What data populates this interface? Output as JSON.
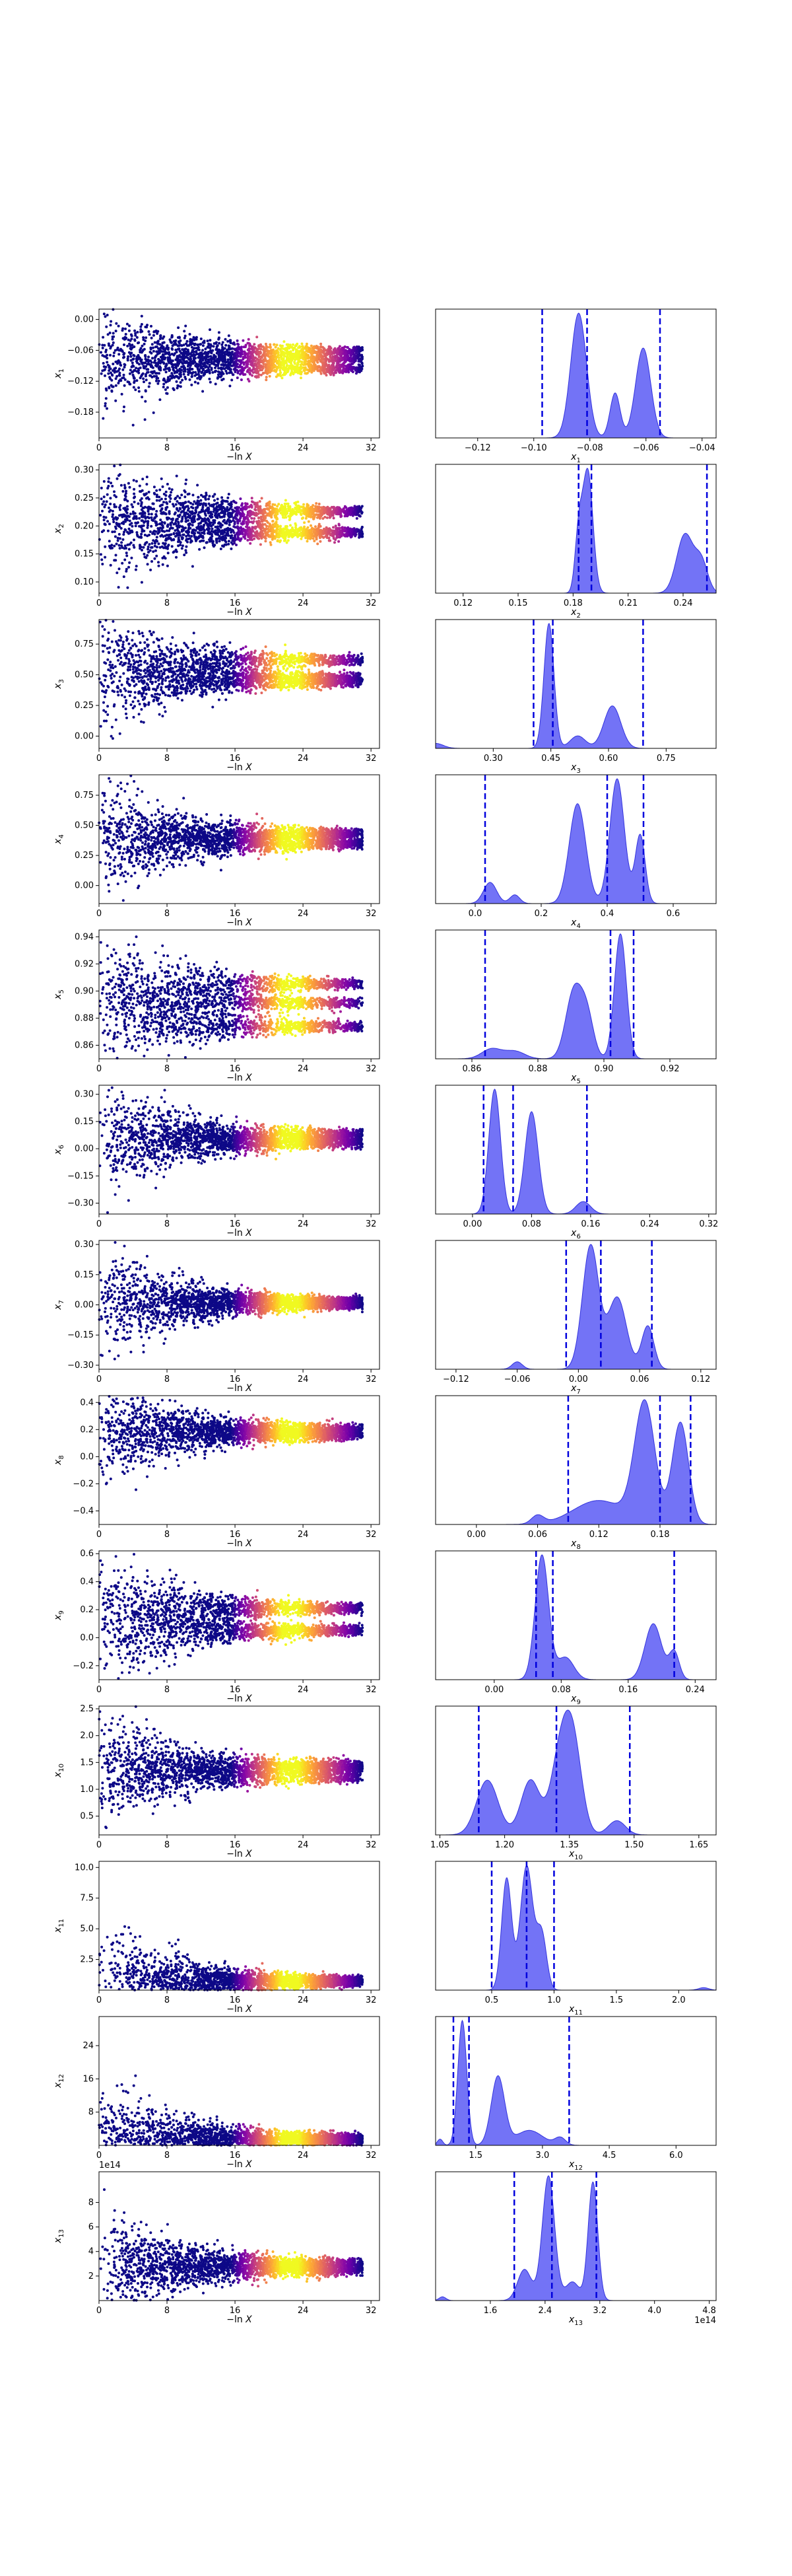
{
  "chart_data": [
    {
      "type": "scatter",
      "parameter": "x1",
      "left_ylabel": "x_1",
      "left_xlabel": "−ln X",
      "left_xlim": [
        0,
        33
      ],
      "left_xticks": [
        "0",
        "8",
        "16",
        "24",
        "32"
      ],
      "left_ylim": [
        -0.23,
        0.02
      ],
      "left_yticks": [
        0.0,
        -0.06,
        -0.12,
        -0.18
      ],
      "left_ytick_labels": [
        "0.00",
        "−0.06",
        "−0.12",
        "−0.18"
      ],
      "trace_modes": [
        -0.095,
        -0.076,
        -0.062
      ],
      "right_xlabel": "x_1",
      "right_xlim": [
        -0.135,
        -0.035
      ],
      "right_xticks": [
        -0.12,
        -0.1,
        -0.08,
        -0.06,
        -0.04
      ],
      "right_xtick_labels": [
        "−0.12",
        "−0.10",
        "−0.08",
        "−0.06",
        "−0.04"
      ],
      "peaks": [
        {
          "mu": -0.084,
          "sigma": 0.0028,
          "h": 1.0
        },
        {
          "mu": -0.071,
          "sigma": 0.0018,
          "h": 0.36
        },
        {
          "mu": -0.061,
          "sigma": 0.0027,
          "h": 0.72
        }
      ],
      "vlines": [
        -0.097,
        -0.081,
        -0.055
      ]
    },
    {
      "type": "scatter",
      "parameter": "x2",
      "left_ylabel": "x_2",
      "left_xlabel": "−ln X",
      "left_xlim": [
        0,
        33
      ],
      "left_xticks": [
        "0",
        "8",
        "16",
        "24",
        "32"
      ],
      "left_ylim": [
        0.08,
        0.31
      ],
      "left_yticks": [
        0.3,
        0.25,
        0.2,
        0.15,
        0.1
      ],
      "left_ytick_labels": [
        "0.30",
        "0.25",
        "0.20",
        "0.15",
        "0.10"
      ],
      "trace_modes": [
        0.188,
        0.226
      ],
      "right_xlabel": "x_2",
      "right_xlim": [
        0.105,
        0.258
      ],
      "right_xticks": [
        0.12,
        0.15,
        0.18,
        0.21,
        0.24
      ],
      "right_xtick_labels": [
        "0.12",
        "0.15",
        "0.18",
        "0.21",
        "0.24"
      ],
      "peaks": [
        {
          "mu": 0.188,
          "sigma": 0.0028,
          "h": 1.0
        },
        {
          "mu": 0.183,
          "sigma": 0.002,
          "h": 0.45
        },
        {
          "mu": 0.241,
          "sigma": 0.0045,
          "h": 0.48
        },
        {
          "mu": 0.25,
          "sigma": 0.0035,
          "h": 0.25
        }
      ],
      "vlines": [
        0.183,
        0.19,
        0.253
      ]
    },
    {
      "type": "scatter",
      "parameter": "x3",
      "left_ylabel": "x_3",
      "left_xlabel": "−ln X",
      "left_xlim": [
        0,
        33
      ],
      "left_xticks": [
        "0",
        "8",
        "16",
        "24",
        "32"
      ],
      "left_ylim": [
        -0.1,
        0.95
      ],
      "left_yticks": [
        0.75,
        0.5,
        0.25,
        0.0
      ],
      "left_ytick_labels": [
        "0.75",
        "0.50",
        "0.25",
        "0.00"
      ],
      "trace_modes": [
        0.44,
        0.48,
        0.62
      ],
      "right_xlabel": "x_3",
      "right_xlim": [
        0.15,
        0.88
      ],
      "right_xticks": [
        0.3,
        0.45,
        0.6,
        0.75
      ],
      "right_xtick_labels": [
        "0.30",
        "0.45",
        "0.60",
        "0.75"
      ],
      "peaks": [
        {
          "mu": 0.445,
          "sigma": 0.013,
          "h": 1.0
        },
        {
          "mu": 0.52,
          "sigma": 0.02,
          "h": 0.1
        },
        {
          "mu": 0.61,
          "sigma": 0.022,
          "h": 0.34
        },
        {
          "mu": 0.15,
          "sigma": 0.02,
          "h": 0.04
        }
      ],
      "vlines": [
        0.405,
        0.455,
        0.69
      ]
    },
    {
      "type": "scatter",
      "parameter": "x4",
      "left_ylabel": "x_4",
      "left_xlabel": "−ln X",
      "left_xlim": [
        0,
        33
      ],
      "left_xticks": [
        "0",
        "8",
        "16",
        "24",
        "32"
      ],
      "left_ylim": [
        -0.15,
        0.92
      ],
      "left_yticks": [
        0.75,
        0.5,
        0.25,
        0.0
      ],
      "left_ytick_labels": [
        "0.75",
        "0.50",
        "0.25",
        "0.00"
      ],
      "trace_modes": [
        0.35,
        0.43
      ],
      "right_xlabel": "x_4",
      "right_xlim": [
        -0.12,
        0.73
      ],
      "right_xticks": [
        0.0,
        0.2,
        0.4,
        0.6
      ],
      "right_xtick_labels": [
        "0.0",
        "0.2",
        "0.4",
        "0.6"
      ],
      "peaks": [
        {
          "mu": 0.045,
          "sigma": 0.02,
          "h": 0.17
        },
        {
          "mu": 0.12,
          "sigma": 0.015,
          "h": 0.07
        },
        {
          "mu": 0.31,
          "sigma": 0.025,
          "h": 0.8
        },
        {
          "mu": 0.43,
          "sigma": 0.022,
          "h": 1.0
        },
        {
          "mu": 0.5,
          "sigma": 0.015,
          "h": 0.55
        }
      ],
      "vlines": [
        0.03,
        0.4,
        0.51
      ]
    },
    {
      "type": "scatter",
      "parameter": "x5",
      "left_ylabel": "x_5",
      "left_xlabel": "−ln X",
      "left_xlim": [
        0,
        33
      ],
      "left_xticks": [
        "0",
        "8",
        "16",
        "24",
        "32"
      ],
      "left_ylim": [
        0.85,
        0.945
      ],
      "left_yticks": [
        0.94,
        0.92,
        0.9,
        0.88,
        0.86
      ],
      "left_ytick_labels": [
        "0.94",
        "0.92",
        "0.90",
        "0.88",
        "0.86"
      ],
      "trace_modes": [
        0.874,
        0.891,
        0.905
      ],
      "right_xlabel": "x_5",
      "right_xlim": [
        0.849,
        0.934
      ],
      "right_xticks": [
        0.86,
        0.88,
        0.9,
        0.92
      ],
      "right_xtick_labels": [
        "0.86",
        "0.88",
        "0.90",
        "0.92"
      ],
      "peaks": [
        {
          "mu": 0.866,
          "sigma": 0.003,
          "h": 0.08
        },
        {
          "mu": 0.873,
          "sigma": 0.003,
          "h": 0.06
        },
        {
          "mu": 0.891,
          "sigma": 0.0025,
          "h": 0.55
        },
        {
          "mu": 0.895,
          "sigma": 0.002,
          "h": 0.3
        },
        {
          "mu": 0.905,
          "sigma": 0.0018,
          "h": 1.0
        }
      ],
      "vlines": [
        0.864,
        0.902,
        0.909
      ]
    },
    {
      "type": "scatter",
      "parameter": "x6",
      "left_ylabel": "x_6",
      "left_xlabel": "−ln X",
      "left_xlim": [
        0,
        33
      ],
      "left_xticks": [
        "0",
        "8",
        "16",
        "24",
        "32"
      ],
      "left_ylim": [
        -0.36,
        0.35
      ],
      "left_yticks": [
        0.3,
        0.15,
        0.0,
        -0.15,
        -0.3
      ],
      "left_ytick_labels": [
        "0.30",
        "0.15",
        "0.00",
        "−0.15",
        "−0.30"
      ],
      "trace_modes": [
        0.03,
        0.08,
        0.05
      ],
      "right_xlabel": "x_6",
      "right_xlim": [
        -0.05,
        0.33
      ],
      "right_xticks": [
        0.0,
        0.08,
        0.16,
        0.24,
        0.32
      ],
      "right_xtick_labels": [
        "0.00",
        "0.08",
        "0.16",
        "0.24",
        "0.32"
      ],
      "peaks": [
        {
          "mu": 0.03,
          "sigma": 0.008,
          "h": 1.0
        },
        {
          "mu": 0.08,
          "sigma": 0.009,
          "h": 0.82
        },
        {
          "mu": 0.15,
          "sigma": 0.01,
          "h": 0.1
        }
      ],
      "vlines": [
        0.015,
        0.055,
        0.155
      ]
    },
    {
      "type": "scatter",
      "parameter": "x7",
      "left_ylabel": "x_7",
      "left_xlabel": "−ln X",
      "left_xlim": [
        0,
        33
      ],
      "left_xticks": [
        "0",
        "8",
        "16",
        "24",
        "32"
      ],
      "left_ylim": [
        -0.32,
        0.32
      ],
      "left_yticks": [
        0.3,
        0.15,
        0.0,
        -0.15,
        -0.3
      ],
      "left_ytick_labels": [
        "0.30",
        "0.15",
        "0.00",
        "−0.15",
        "−0.30"
      ],
      "trace_modes": [
        0.02,
        0.0
      ],
      "right_xlabel": "x_7",
      "right_xlim": [
        -0.14,
        0.135
      ],
      "right_xticks": [
        -0.12,
        -0.06,
        0.0,
        0.06,
        0.12
      ],
      "right_xtick_labels": [
        "−0.12",
        "−0.06",
        "0.00",
        "0.06",
        "0.12"
      ],
      "peaks": [
        {
          "mu": 0.012,
          "sigma": 0.008,
          "h": 1.0
        },
        {
          "mu": 0.038,
          "sigma": 0.009,
          "h": 0.58
        },
        {
          "mu": 0.068,
          "sigma": 0.006,
          "h": 0.35
        },
        {
          "mu": -0.06,
          "sigma": 0.005,
          "h": 0.06
        }
      ],
      "vlines": [
        -0.012,
        0.022,
        0.072
      ]
    },
    {
      "type": "scatter",
      "parameter": "x8",
      "left_ylabel": "x_8",
      "left_xlabel": "−ln X",
      "left_xlim": [
        0,
        33
      ],
      "left_xticks": [
        "0",
        "8",
        "16",
        "24",
        "32"
      ],
      "left_ylim": [
        -0.5,
        0.45
      ],
      "left_yticks": [
        0.4,
        0.2,
        0.0,
        -0.2,
        -0.4
      ],
      "left_ytick_labels": [
        "0.4",
        "0.2",
        "0.0",
        "−0.2",
        "−0.4"
      ],
      "trace_modes": [
        0.16,
        0.2
      ],
      "right_xlabel": "x_8",
      "right_xlim": [
        -0.04,
        0.235
      ],
      "right_xticks": [
        0.0,
        0.06,
        0.12,
        0.18
      ],
      "right_xtick_labels": [
        "0.00",
        "0.06",
        "0.12",
        "0.18"
      ],
      "peaks": [
        {
          "mu": 0.165,
          "sigma": 0.01,
          "h": 1.0
        },
        {
          "mu": 0.2,
          "sigma": 0.008,
          "h": 0.85
        },
        {
          "mu": 0.12,
          "sigma": 0.025,
          "h": 0.2
        },
        {
          "mu": 0.06,
          "sigma": 0.006,
          "h": 0.07
        }
      ],
      "vlines": [
        0.09,
        0.18,
        0.21
      ]
    },
    {
      "type": "scatter",
      "parameter": "x9",
      "left_ylabel": "x_9",
      "left_xlabel": "−ln X",
      "left_xlim": [
        0,
        33
      ],
      "left_xticks": [
        "0",
        "8",
        "16",
        "24",
        "32"
      ],
      "left_ylim": [
        -0.3,
        0.62
      ],
      "left_yticks": [
        0.6,
        0.4,
        0.2,
        0.0,
        -0.2
      ],
      "left_ytick_labels": [
        "0.6",
        "0.4",
        "0.2",
        "0.0",
        "−0.2"
      ],
      "trace_modes": [
        0.05,
        0.21
      ],
      "right_xlabel": "x_9",
      "right_xlim": [
        -0.07,
        0.265
      ],
      "right_xticks": [
        0.0,
        0.08,
        0.16,
        0.24
      ],
      "right_xtick_labels": [
        "0.00",
        "0.08",
        "0.16",
        "0.24"
      ],
      "peaks": [
        {
          "mu": 0.057,
          "sigma": 0.008,
          "h": 1.0
        },
        {
          "mu": 0.085,
          "sigma": 0.01,
          "h": 0.18
        },
        {
          "mu": 0.19,
          "sigma": 0.01,
          "h": 0.45
        },
        {
          "mu": 0.215,
          "sigma": 0.006,
          "h": 0.22
        }
      ],
      "vlines": [
        0.05,
        0.07,
        0.215
      ]
    },
    {
      "type": "scatter",
      "parameter": "x10",
      "left_ylabel": "x_10",
      "left_xlabel": "−ln X",
      "left_xlim": [
        0,
        33
      ],
      "left_xticks": [
        "0",
        "8",
        "16",
        "24",
        "32"
      ],
      "left_ylim": [
        0.15,
        2.55
      ],
      "left_yticks": [
        2.5,
        2.0,
        1.5,
        1.0,
        0.5
      ],
      "left_ytick_labels": [
        "2.5",
        "2.0",
        "1.5",
        "1.0",
        "0.5"
      ],
      "trace_modes": [
        1.22,
        1.35,
        1.45
      ],
      "right_xlabel": "x_10",
      "right_xlim": [
        1.04,
        1.69
      ],
      "right_xticks": [
        1.05,
        1.2,
        1.35,
        1.5,
        1.65
      ],
      "right_xtick_labels": [
        "1.05",
        "1.20",
        "1.35",
        "1.50",
        "1.65"
      ],
      "peaks": [
        {
          "mu": 1.16,
          "sigma": 0.025,
          "h": 0.5
        },
        {
          "mu": 1.26,
          "sigma": 0.022,
          "h": 0.5
        },
        {
          "mu": 1.33,
          "sigma": 0.022,
          "h": 0.75
        },
        {
          "mu": 1.36,
          "sigma": 0.02,
          "h": 0.72
        },
        {
          "mu": 1.46,
          "sigma": 0.02,
          "h": 0.13
        }
      ],
      "vlines": [
        1.14,
        1.32,
        1.49
      ]
    },
    {
      "type": "scatter",
      "parameter": "x11",
      "left_ylabel": "x_11",
      "left_xlabel": "−ln X",
      "left_xlim": [
        0,
        33
      ],
      "left_xticks": [
        "0",
        "8",
        "16",
        "24",
        "32"
      ],
      "left_ylim": [
        0.0,
        10.5
      ],
      "left_yticks": [
        10.0,
        7.5,
        5.0,
        2.5
      ],
      "left_ytick_labels": [
        "10.0",
        "7.5",
        "5.0",
        "2.5"
      ],
      "trace_modes": [
        0.65,
        0.8
      ],
      "right_xlabel": "x_11",
      "right_xlim": [
        0.05,
        2.3
      ],
      "right_xticks": [
        0.5,
        1.0,
        1.5,
        2.0
      ],
      "right_xtick_labels": [
        "0.5",
        "1.0",
        "1.5",
        "2.0"
      ],
      "peaks": [
        {
          "mu": 0.62,
          "sigma": 0.04,
          "h": 0.9
        },
        {
          "mu": 0.78,
          "sigma": 0.05,
          "h": 1.0
        },
        {
          "mu": 0.9,
          "sigma": 0.04,
          "h": 0.45
        },
        {
          "mu": 2.2,
          "sigma": 0.04,
          "h": 0.02
        }
      ],
      "vlines": [
        0.5,
        0.78,
        1.0
      ]
    },
    {
      "type": "scatter",
      "parameter": "x12",
      "left_ylabel": "x_12",
      "left_xlabel": "−ln X",
      "left_xlim": [
        0,
        33
      ],
      "left_xticks": [
        "0",
        "8",
        "16",
        "24",
        "32"
      ],
      "left_ylim": [
        0.0,
        31.0
      ],
      "left_yticks": [
        24,
        16,
        8
      ],
      "left_ytick_labels": [
        "24",
        "16",
        "8"
      ],
      "trace_modes": [
        1.2,
        1.8
      ],
      "right_xlabel": "x_12",
      "right_xlim": [
        0.6,
        6.9
      ],
      "right_xticks": [
        1.5,
        3.0,
        4.5,
        6.0
      ],
      "right_xtick_labels": [
        "1.5",
        "3.0",
        "4.5",
        "6.0"
      ],
      "peaks": [
        {
          "mu": 1.2,
          "sigma": 0.1,
          "h": 1.0
        },
        {
          "mu": 2.0,
          "sigma": 0.15,
          "h": 0.55
        },
        {
          "mu": 2.7,
          "sigma": 0.3,
          "h": 0.12
        },
        {
          "mu": 3.4,
          "sigma": 0.12,
          "h": 0.06
        },
        {
          "mu": 0.7,
          "sigma": 0.06,
          "h": 0.05
        }
      ],
      "vlines": [
        1.0,
        1.35,
        3.6
      ]
    },
    {
      "type": "scatter",
      "parameter": "x13",
      "left_ylabel": "x_13",
      "left_xlabel": "−ln X",
      "left_xlim": [
        0,
        33
      ],
      "left_xticks": [
        "0",
        "8",
        "16",
        "24",
        "32"
      ],
      "left_ylim": [
        0.0,
        10.5
      ],
      "left_yticks": [
        8,
        6,
        4,
        2
      ],
      "left_ytick_labels": [
        "8",
        "6",
        "4",
        "2"
      ],
      "left_offset_label": "1e14",
      "trace_modes": [
        2.5,
        3.0
      ],
      "right_xlabel": "x_13",
      "right_xlim": [
        0.8,
        4.9
      ],
      "right_xticks": [
        1.6,
        2.4,
        3.2,
        4.0,
        4.8
      ],
      "right_xtick_labels": [
        "1.6",
        "2.4",
        "3.2",
        "4.0",
        "4.8"
      ],
      "right_offset_label": "1e14",
      "peaks": [
        {
          "mu": 2.45,
          "sigma": 0.09,
          "h": 1.0
        },
        {
          "mu": 3.1,
          "sigma": 0.07,
          "h": 0.95
        },
        {
          "mu": 2.1,
          "sigma": 0.1,
          "h": 0.25
        },
        {
          "mu": 0.9,
          "sigma": 0.05,
          "h": 0.03
        },
        {
          "mu": 2.8,
          "sigma": 0.1,
          "h": 0.15
        }
      ],
      "vlines": [
        1.95,
        2.5,
        3.15
      ]
    }
  ],
  "colors": {
    "kde_fill": "#6b6bf5",
    "kde_line": "#3333dd",
    "vline": "#0000dd",
    "cold_point": "#0d0887",
    "hot_point": "#f0f921"
  },
  "colormap": [
    "#0d0887",
    "#3b049a",
    "#6a00a8",
    "#900da4",
    "#b12a90",
    "#cc4778",
    "#e16462",
    "#f2844b",
    "#fca636",
    "#fcce25",
    "#f0f921"
  ]
}
